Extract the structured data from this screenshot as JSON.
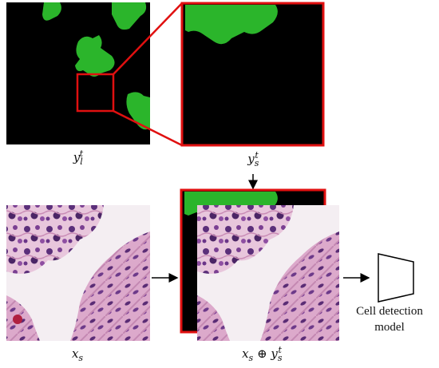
{
  "colors": {
    "mask_green": "#2bb52b",
    "highlight_red": "#e01010",
    "background_black": "#000000",
    "arrow": "#000000"
  },
  "labels": {
    "yl": {
      "base": "y",
      "sub": "l",
      "sup": "t"
    },
    "ys": {
      "base": "y",
      "sub": "s",
      "sup": "t"
    },
    "xs": {
      "base": "x",
      "sub": "s"
    },
    "combined": {
      "base_x": "x",
      "sub_x": "s",
      "op": "⊕",
      "base_y": "y",
      "sub_y": "s",
      "sup_y": "t"
    }
  },
  "model": {
    "line1": "Cell detection",
    "line2": "model"
  }
}
